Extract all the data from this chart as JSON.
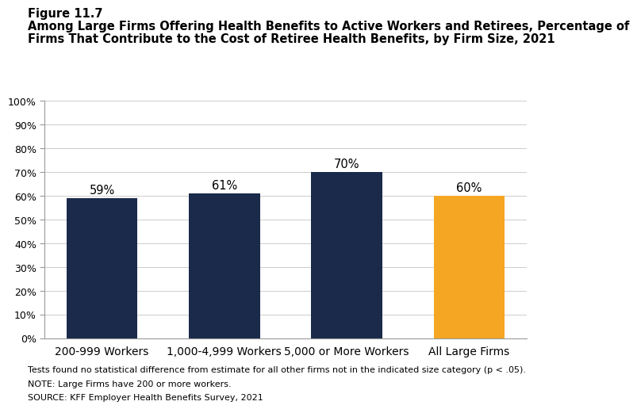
{
  "figure_label": "Figure 11.7",
  "title_line1": "Among Large Firms Offering Health Benefits to Active Workers and Retirees, Percentage of",
  "title_line2": "Firms That Contribute to the Cost of Retiree Health Benefits, by Firm Size, 2021",
  "categories": [
    "200-999 Workers",
    "1,000-4,999 Workers",
    "5,000 or More Workers",
    "All Large Firms"
  ],
  "values": [
    59,
    61,
    70,
    60
  ],
  "bar_colors": [
    "#1b2a4a",
    "#1b2a4a",
    "#1b2a4a",
    "#f5a623"
  ],
  "dark_blue": "#1b2a4a",
  "orange": "#f5a623",
  "ylim": [
    0,
    100
  ],
  "yticks": [
    0,
    10,
    20,
    30,
    40,
    50,
    60,
    70,
    80,
    90,
    100
  ],
  "ytick_labels": [
    "0%",
    "10%",
    "20%",
    "30%",
    "40%",
    "50%",
    "60%",
    "70%",
    "80%",
    "90%",
    "100%"
  ],
  "footnote1": "Tests found no statistical difference from estimate for all other firms not in the indicated size category (p < .05).",
  "footnote2": "NOTE: Large Firms have 200 or more workers.",
  "footnote3": "SOURCE: KFF Employer Health Benefits Survey, 2021",
  "background_color": "#ffffff",
  "label_fontsize": 10,
  "tick_fontsize": 9,
  "value_label_fontsize": 10.5,
  "title_fontsize": 10.5,
  "figure_label_fontsize": 10.5,
  "footnote_fontsize": 8
}
